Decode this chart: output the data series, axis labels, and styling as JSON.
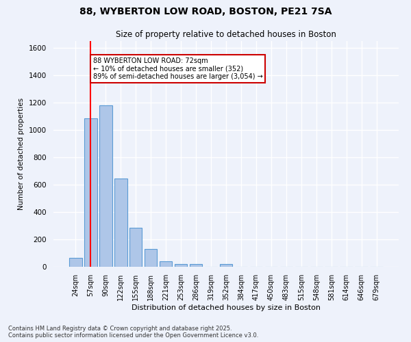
{
  "title_line1": "88, WYBERTON LOW ROAD, BOSTON, PE21 7SA",
  "title_line2": "Size of property relative to detached houses in Boston",
  "xlabel": "Distribution of detached houses by size in Boston",
  "ylabel": "Number of detached properties",
  "bar_labels": [
    "24sqm",
    "57sqm",
    "90sqm",
    "122sqm",
    "155sqm",
    "188sqm",
    "221sqm",
    "253sqm",
    "286sqm",
    "319sqm",
    "352sqm",
    "384sqm",
    "417sqm",
    "450sqm",
    "483sqm",
    "515sqm",
    "548sqm",
    "581sqm",
    "614sqm",
    "646sqm",
    "679sqm"
  ],
  "bar_values": [
    65,
    1085,
    1180,
    645,
    285,
    130,
    40,
    22,
    20,
    0,
    20,
    0,
    0,
    0,
    0,
    0,
    0,
    0,
    0,
    0,
    0
  ],
  "bar_color": "#aec6e8",
  "bar_edge_color": "#5b9bd5",
  "red_line_x": 1,
  "ylim": [
    0,
    1650
  ],
  "yticks": [
    0,
    200,
    400,
    600,
    800,
    1000,
    1200,
    1400,
    1600
  ],
  "annotation_text": "88 WYBERTON LOW ROAD: 72sqm\n← 10% of detached houses are smaller (352)\n89% of semi-detached houses are larger (3,054) →",
  "annotation_box_color": "#ffffff",
  "annotation_box_edge": "#cc0000",
  "footnote_line1": "Contains HM Land Registry data © Crown copyright and database right 2025.",
  "footnote_line2": "Contains public sector information licensed under the Open Government Licence v3.0.",
  "background_color": "#eef2fb",
  "grid_color": "#ffffff",
  "fig_width": 6.0,
  "fig_height": 5.0,
  "dpi": 100
}
